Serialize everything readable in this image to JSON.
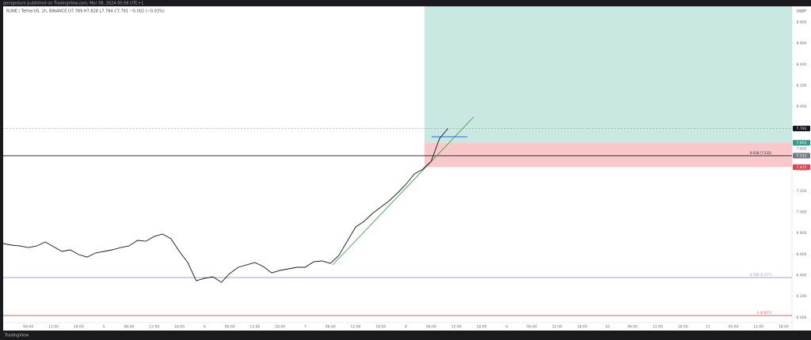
{
  "header": "gerogedum published on TradingView.com, Mar 08, 2024 00:56 UTC+1",
  "footer": "TradingView",
  "chart_data": {
    "type": "line",
    "title": "RUNE / TetherUS, 1h, BINANCE  O7.789  H7.828  L7.784  C7.791  −0.002 (−0.03%)",
    "y_axis_label": "USDT",
    "color": "#131722",
    "categories": [
      null,
      null,
      null,
      "06:00",
      null,
      null,
      "12:00",
      null,
      null,
      "18:00",
      null,
      null,
      "5",
      null,
      null,
      "06:00",
      null,
      null,
      "12:00",
      null,
      null,
      "18:00",
      null,
      null,
      "6",
      null,
      null,
      "06:00",
      null,
      null,
      "12:00",
      null,
      null,
      "18:00",
      null,
      null,
      "7",
      null,
      null,
      "06:00",
      null,
      null,
      "12:00",
      null,
      null,
      "18:00",
      null,
      null,
      "8",
      null,
      null,
      "06:00",
      null,
      null,
      "12:00",
      null,
      null,
      "18:00",
      null,
      null,
      "9",
      null,
      null,
      "06:00",
      null,
      null,
      "12:00",
      null,
      null,
      "18:00",
      null,
      null,
      "10",
      null,
      null,
      "06:00",
      null,
      null,
      "12:00",
      null,
      null,
      "18:00",
      null,
      null,
      "11",
      null,
      null,
      "06:00",
      null,
      null,
      "12:00",
      null,
      null,
      "18:00",
      null
    ],
    "values": [
      6.7,
      6.685,
      6.677,
      6.662,
      6.677,
      6.715,
      6.67,
      6.625,
      6.64,
      6.595,
      6.572,
      6.61,
      6.625,
      6.64,
      6.662,
      6.677,
      6.73,
      6.722,
      6.767,
      6.79,
      6.745,
      6.625,
      6.52,
      6.347,
      6.37,
      6.385,
      6.332,
      6.415,
      6.475,
      6.497,
      6.52,
      6.482,
      6.422,
      6.445,
      6.46,
      6.475,
      6.475,
      6.527,
      6.535,
      6.512,
      6.587,
      6.722,
      6.857,
      6.91,
      6.985,
      7.045,
      7.105,
      7.18,
      7.262,
      7.36,
      7.405,
      7.48,
      7.697,
      7.791,
      null,
      null,
      null,
      null,
      null,
      null,
      null,
      null,
      null,
      null,
      null,
      null,
      null,
      null,
      null,
      null,
      null,
      null,
      null,
      null,
      null,
      null,
      null,
      null,
      null,
      null,
      null,
      null,
      null,
      null,
      null,
      null,
      null,
      null,
      null,
      null,
      null,
      null,
      null,
      null,
      null
    ],
    "ylim": [
      5.95,
      8.95
    ],
    "yticks": [
      {
        "value": 6,
        "label": "6.000"
      },
      {
        "value": 6.2,
        "label": "6.200"
      },
      {
        "value": 6.4,
        "label": "6.400"
      },
      {
        "value": 6.6,
        "label": "6.600"
      },
      {
        "value": 6.8,
        "label": "6.800"
      },
      {
        "value": 7,
        "label": "7.000"
      },
      {
        "value": 7.2,
        "label": "7.200"
      },
      {
        "value": 7.4,
        "label": "7.400"
      },
      {
        "value": 7.6,
        "label": "7.600"
      },
      {
        "value": 7.8,
        "label": "7.800"
      },
      {
        "value": 8,
        "label": "8.000"
      },
      {
        "value": 8.2,
        "label": "8.200"
      },
      {
        "value": 8.4,
        "label": "8.400"
      },
      {
        "value": 8.6,
        "label": "8.600"
      },
      {
        "value": 8.8,
        "label": "8.800"
      }
    ],
    "levels": [
      {
        "label": "0.618 (7.533)",
        "value": 7.533,
        "color": "#131722"
      },
      {
        "label": "0.786 (6.377)",
        "value": 6.377,
        "color": "#9c8ee0"
      },
      {
        "label": "1 (6.017)",
        "value": 6.017,
        "color": "#e0454d"
      }
    ],
    "position": {
      "target": 8.95,
      "entry": 7.655,
      "stop": 7.425,
      "profit_color": "#c8e8e1",
      "loss_color": "#f9c8cb",
      "entry_color": "#2e9e8c",
      "stop_color": "#e0454d"
    }
  }
}
